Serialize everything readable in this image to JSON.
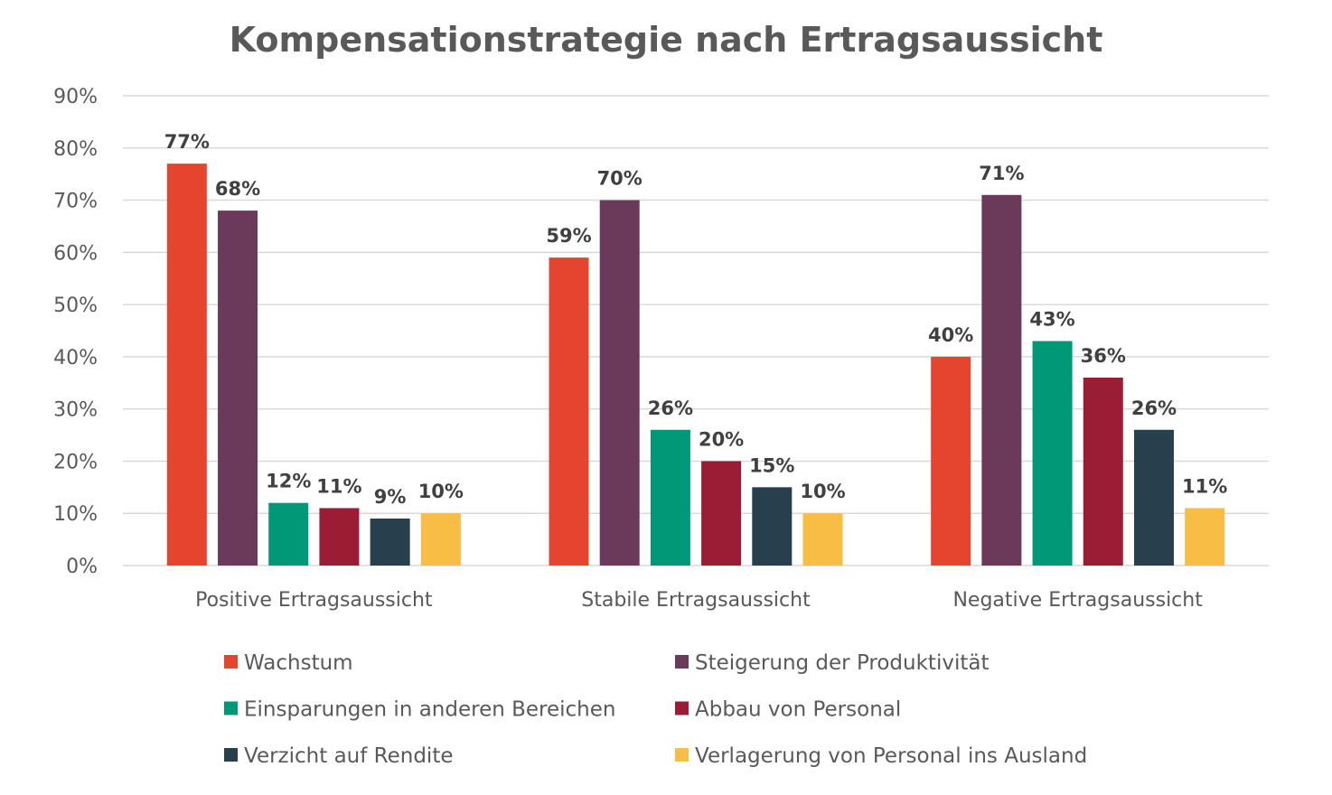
{
  "chart_data": {
    "type": "bar",
    "title": "Kompensationstrategie nach Ertragsaussicht",
    "xlabel": "",
    "ylabel": "",
    "ylim": [
      0,
      90
    ],
    "yticks": [
      "0%",
      "10%",
      "20%",
      "30%",
      "40%",
      "50%",
      "60%",
      "70%",
      "80%",
      "90%"
    ],
    "grid": true,
    "legend_position": "bottom",
    "categories": [
      "Positive Ertragsaussicht",
      "Stabile Ertragsaussicht",
      "Negative Ertragsaussicht"
    ],
    "series": [
      {
        "name": "Wachstum",
        "color": "#E5442F",
        "values": [
          77,
          59,
          40
        ]
      },
      {
        "name": "Steigerung der Produktivität",
        "color": "#6B3A5B",
        "values": [
          68,
          70,
          71
        ]
      },
      {
        "name": "Einsparungen in anderen Bereichen",
        "color": "#009877",
        "values": [
          12,
          26,
          43
        ]
      },
      {
        "name": "Abbau von Personal",
        "color": "#9B1C35",
        "values": [
          11,
          20,
          36
        ]
      },
      {
        "name": "Verzicht auf Rendite",
        "color": "#283F4E",
        "values": [
          9,
          15,
          26
        ]
      },
      {
        "name": "Verlagerung von Personal ins Ausland",
        "color": "#F8BD45",
        "values": [
          10,
          10,
          11
        ]
      }
    ]
  }
}
